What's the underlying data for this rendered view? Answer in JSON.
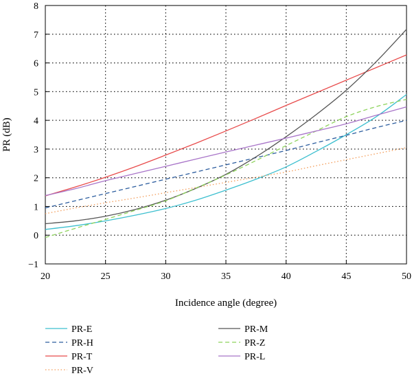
{
  "chart_data": {
    "type": "line",
    "xlabel": "Incidence angle (degree)",
    "ylabel": "PR (dB)",
    "xlim": [
      20,
      50
    ],
    "ylim": [
      -1,
      8
    ],
    "xticks": [
      20,
      25,
      30,
      35,
      40,
      45,
      50
    ],
    "yticks": [
      -1,
      0,
      1,
      2,
      3,
      4,
      5,
      6,
      7,
      8
    ],
    "grid": "dotted",
    "legend_position": "bottom",
    "x": [
      20,
      22.5,
      25,
      27.5,
      30,
      32.5,
      35,
      37.5,
      40,
      42.5,
      45,
      47.5,
      50
    ],
    "series": [
      {
        "name": "PR-E",
        "color": "#3cbfcf",
        "dash": "solid",
        "values": [
          0.2,
          0.33,
          0.5,
          0.7,
          0.93,
          1.22,
          1.57,
          1.95,
          2.38,
          2.92,
          3.5,
          4.13,
          4.9
        ]
      },
      {
        "name": "PR-H",
        "color": "#2b5c9e",
        "dash": "dashed",
        "values": [
          0.95,
          1.2,
          1.45,
          1.7,
          1.95,
          2.2,
          2.45,
          2.7,
          2.95,
          3.22,
          3.48,
          3.75,
          4.0
        ]
      },
      {
        "name": "PR-T",
        "color": "#e84b4b",
        "dash": "solid",
        "values": [
          1.37,
          1.68,
          2.02,
          2.39,
          2.79,
          3.2,
          3.63,
          4.07,
          4.52,
          4.96,
          5.4,
          5.84,
          6.28
        ]
      },
      {
        "name": "PR-V",
        "color": "#f39a55",
        "dash": "dotted",
        "values": [
          0.75,
          0.95,
          1.13,
          1.3,
          1.48,
          1.66,
          1.84,
          2.02,
          2.2,
          2.42,
          2.63,
          2.84,
          3.05
        ]
      },
      {
        "name": "PR-M",
        "color": "#555555",
        "dash": "solid",
        "values": [
          0.4,
          0.5,
          0.66,
          0.9,
          1.22,
          1.63,
          2.12,
          2.73,
          3.43,
          4.2,
          5.05,
          6.05,
          7.17
        ]
      },
      {
        "name": "PR-Z",
        "color": "#8cd25a",
        "dash": "dashed",
        "values": [
          -0.08,
          0.24,
          0.55,
          0.87,
          1.2,
          1.64,
          2.1,
          2.6,
          3.12,
          3.63,
          4.13,
          4.48,
          4.73
        ]
      },
      {
        "name": "PR-L",
        "color": "#a874c8",
        "dash": "solid",
        "values": [
          1.38,
          1.62,
          1.9,
          2.15,
          2.4,
          2.65,
          2.9,
          3.14,
          3.38,
          3.63,
          3.88,
          4.18,
          4.47
        ]
      }
    ]
  }
}
